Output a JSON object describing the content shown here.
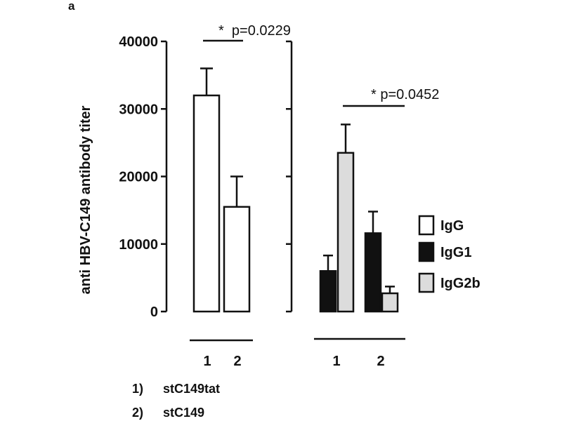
{
  "panel_label": "a",
  "chart_data": [
    {
      "type": "bar",
      "ylabel": "anti HBV-C149 antibody titer",
      "ylim": [
        0,
        40000
      ],
      "yticks": [
        "0",
        "10000",
        "20000",
        "30000",
        "40000"
      ],
      "categories": [
        "1",
        "2"
      ],
      "series": [
        {
          "name": "IgG",
          "values": [
            32000,
            15500
          ],
          "errors": [
            4000,
            4500
          ]
        }
      ],
      "annotation": {
        "text": "*  p=0.0229",
        "between": [
          "1",
          "2"
        ]
      }
    },
    {
      "type": "bar",
      "ylim": [
        0,
        40000
      ],
      "categories": [
        "1",
        "2"
      ],
      "series": [
        {
          "name": "IgG1",
          "values": [
            6000,
            11600
          ],
          "errors": [
            2300,
            3200
          ]
        },
        {
          "name": "IgG2b",
          "values": [
            23500,
            2700
          ],
          "errors": [
            4200,
            1000
          ]
        }
      ],
      "annotation": {
        "text": "* p=0.0452"
      }
    }
  ],
  "legend": [
    {
      "label": "IgG",
      "color": "#ffffff"
    },
    {
      "label": "IgG1",
      "color": "#111111"
    },
    {
      "label": "IgG2b",
      "color": "#dcdcdc"
    }
  ],
  "key": [
    {
      "num": "1)",
      "label": "stC149tat"
    },
    {
      "num": "2)",
      "label": "stC149"
    }
  ]
}
